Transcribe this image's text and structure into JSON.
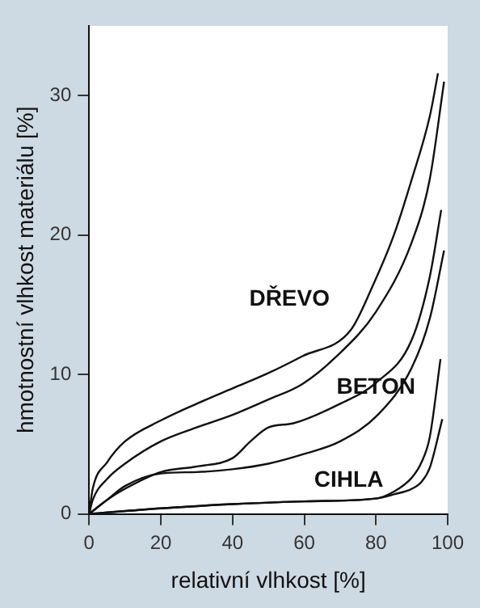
{
  "chart_data": {
    "type": "line",
    "xlabel": "relativní vlhkost [%]",
    "ylabel": "hmotnostní vlhkost materiálu [%]",
    "xlim": [
      0,
      100
    ],
    "ylim": [
      0,
      35
    ],
    "xticks": [
      0,
      20,
      40,
      60,
      80,
      100
    ],
    "yticks": [
      0,
      10,
      20,
      30
    ],
    "series": [
      {
        "name": "DŘEVO",
        "color": "#111111",
        "x": [
          0,
          1,
          5,
          10,
          20,
          30,
          40,
          50,
          59.4,
          73,
          79,
          85,
          90,
          95,
          97.3
        ],
        "values": [
          0,
          1.8,
          3.7,
          5.2,
          6.7,
          7.9,
          9,
          10.1,
          11.3,
          13.2,
          16.3,
          20,
          24,
          28.5,
          31.6
        ]
      },
      {
        "color": "#111111",
        "x": [
          0,
          1,
          5,
          10,
          20,
          30,
          40,
          50,
          59.4,
          68.6,
          80,
          90,
          95,
          99
        ],
        "values": [
          0,
          1,
          2.5,
          3.6,
          5.2,
          6.2,
          7.1,
          8.2,
          9.3,
          11.2,
          14.5,
          19.5,
          24,
          31
        ]
      },
      {
        "name": "BETON",
        "color": "#111111",
        "x": [
          0,
          5,
          10,
          20,
          30,
          40,
          45,
          50,
          57,
          70,
          80,
          90,
          95,
          98.2
        ],
        "values": [
          0,
          1,
          1.8,
          3,
          3.4,
          4,
          5.2,
          6.2,
          6.5,
          7.9,
          9.4,
          12.5,
          17,
          21.8
        ]
      },
      {
        "color": "#111111",
        "x": [
          0,
          5,
          10,
          20,
          30,
          40,
          50,
          60,
          70,
          80.5,
          90,
          95,
          99
        ],
        "values": [
          0,
          1,
          2,
          2.9,
          3,
          3.2,
          3.6,
          4.3,
          5.2,
          7.1,
          10.5,
          14,
          18.9
        ]
      },
      {
        "name": "CIHLA",
        "color": "#111111",
        "x": [
          0,
          20,
          40,
          60,
          80,
          85,
          90,
          92.7,
          95,
          98
        ],
        "values": [
          0,
          0.4,
          0.7,
          0.9,
          1.1,
          1.6,
          2.6,
          3.7,
          5.5,
          11.1
        ]
      },
      {
        "color": "#111111",
        "x": [
          0,
          20,
          40,
          60,
          80,
          85,
          90,
          92.7,
          95,
          98.5
        ],
        "values": [
          0,
          0.4,
          0.7,
          0.9,
          1.1,
          1.4,
          1.8,
          2.3,
          3.3,
          6.8
        ]
      }
    ]
  }
}
